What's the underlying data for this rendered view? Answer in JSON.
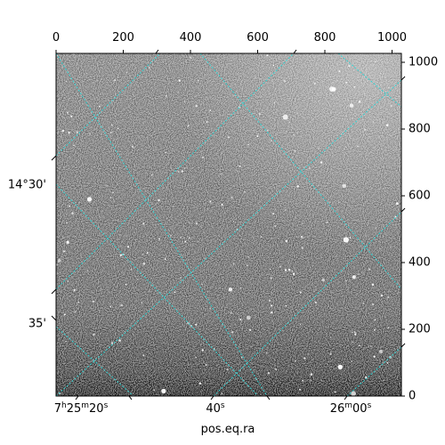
{
  "figure": {
    "xlabel": "pos.eq.ra",
    "pixel_x_ticks": [
      "0",
      "200",
      "400",
      "600",
      "800",
      "1000"
    ],
    "pixel_y_ticks": [
      "0",
      "200",
      "400",
      "600",
      "800",
      "1000"
    ],
    "dec_ticks": [
      "14°30'",
      "35'"
    ],
    "ra_ticks": [
      {
        "h": "7",
        "h_unit": "h",
        "m": "25",
        "m_unit": "m",
        "s": "20",
        "s_unit": "s"
      },
      {
        "s": "40",
        "s_unit": "s"
      },
      {
        "m": "26",
        "m_unit": "m",
        "s": "00",
        "s_unit": "s"
      }
    ],
    "grid_color": "#33d6d6",
    "image_style": "grayscale sky survey with scattered white stars, darkening toward bottom"
  }
}
